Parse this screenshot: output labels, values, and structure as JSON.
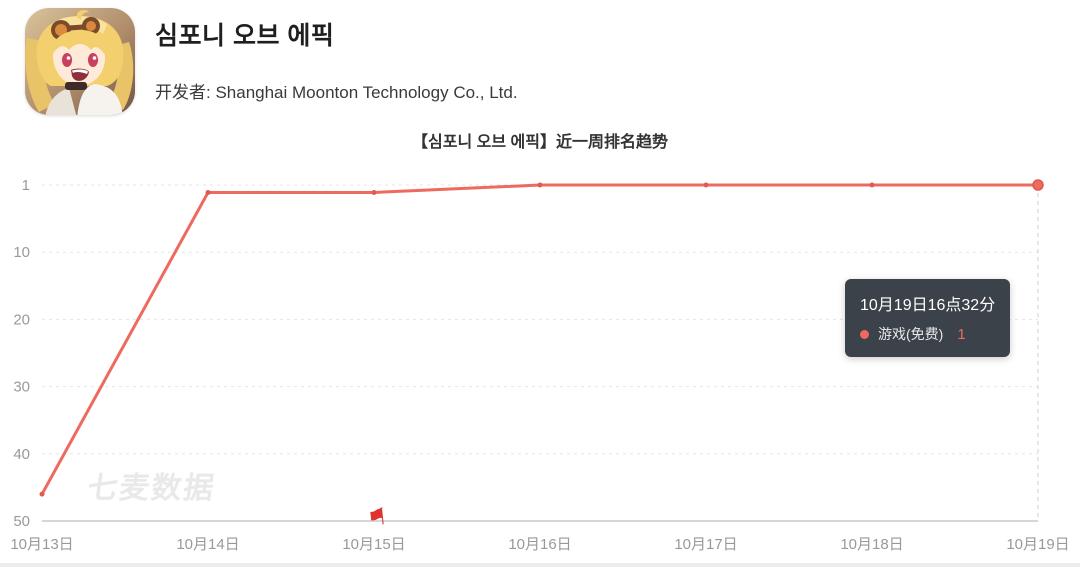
{
  "header": {
    "app_title": "심포니 오브 에픽",
    "developer": "开发者: Shanghai Moonton Technology Co., Ltd.",
    "app_icon": "symphony-of-epic-anime-girl-icon"
  },
  "chart": {
    "title": "【심포니 오브 에픽】近一周排名趋势",
    "watermark": "七麦数据",
    "tooltip": {
      "time": "10月19日16点32分",
      "series": "游戏(免费)",
      "value": "1"
    }
  },
  "icons": {
    "flag_marker_glyph": "⚑"
  },
  "chart_data": {
    "type": "line",
    "title": "【심포니 오브 에픽】近一周排名趋势",
    "categories": [
      "10月13日",
      "10月14日",
      "10月15日",
      "10月16日",
      "10月17日",
      "10月18日",
      "10月19日"
    ],
    "series": [
      {
        "name": "游戏(免费)",
        "values": [
          46,
          2,
          2,
          1,
          1,
          1,
          1
        ]
      }
    ],
    "y_ticks": [
      1,
      10,
      20,
      30,
      40,
      50
    ],
    "y_axis_inverted": true,
    "ylim": [
      1,
      50
    ],
    "grid": "horizontal-dashed",
    "legend_position": "tooltip-only",
    "highlight_index": 6,
    "flag_marker_index": 2,
    "colors": {
      "line": "#ee6a5f",
      "point": "#e05a50",
      "tooltip_bg": "#3b424a",
      "axis_label": "#999999",
      "gridline": "#e5e5e5",
      "axis_line": "#c9c9c9",
      "hover_line": "#cfcfcf",
      "flag": "#e03131",
      "highlight_value": "#ee6a5f"
    }
  }
}
